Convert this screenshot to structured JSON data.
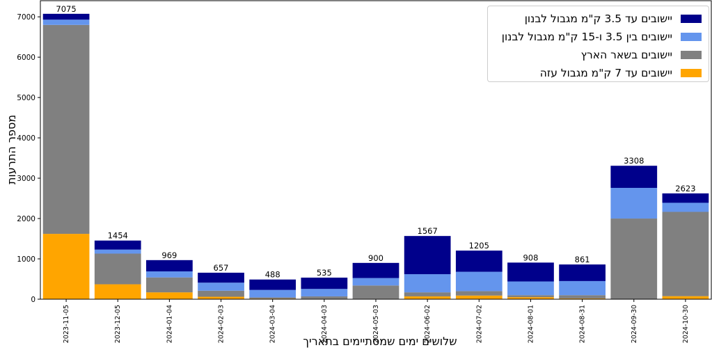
{
  "chart_data": {
    "type": "bar",
    "stacked": true,
    "title": "",
    "xlabel": "שלושים ימים שמסתיימים בתאריך",
    "ylabel": "מספר התרעות",
    "ylim": [
      0,
      7400
    ],
    "yticks": [
      0,
      1000,
      2000,
      3000,
      4000,
      5000,
      6000,
      7000
    ],
    "grid": false,
    "legend_position": "top-right",
    "categories": [
      "2023-11-05",
      "2023-12-05",
      "2024-01-04",
      "2024-02-03",
      "2024-03-04",
      "2024-04-03",
      "2024-05-03",
      "2024-06-02",
      "2024-07-02",
      "2024-08-01",
      "2024-08-31",
      "2024-09-30",
      "2024-10-30"
    ],
    "totals": [
      7075,
      1454,
      969,
      657,
      488,
      535,
      900,
      1567,
      1205,
      908,
      861,
      3308,
      2623
    ],
    "series": [
      {
        "name": "יישובים עד 7 ק\"מ מגבול עזה",
        "color": "#FFA500",
        "values": [
          1620,
          370,
          170,
          60,
          15,
          10,
          10,
          70,
          90,
          50,
          20,
          0,
          75
        ]
      },
      {
        "name": "יישובים בשאר הארץ",
        "color": "#808080",
        "values": [
          5180,
          760,
          370,
          150,
          30,
          60,
          330,
          100,
          110,
          50,
          80,
          2000,
          2090
        ]
      },
      {
        "name": "יישובים בין 3.5 ו-15 ק\"מ מגבול לבנון",
        "color": "#6495ED",
        "values": [
          130,
          100,
          150,
          200,
          185,
          185,
          185,
          450,
          480,
          340,
          350,
          760,
          225
        ]
      },
      {
        "name": "יישובים עד 3.5 ק\"מ מגבול לבנון",
        "color": "#00008B",
        "values": [
          145,
          224,
          279,
          247,
          258,
          280,
          375,
          947,
          525,
          468,
          411,
          548,
          233
        ]
      }
    ]
  },
  "legend": [
    {
      "label": "יישובים עד 3.5 ק\"מ מגבול לבנון",
      "color": "#00008B"
    },
    {
      "label": "יישובים בין 3.5 ו-15 ק\"מ מגבול לבנון",
      "color": "#6495ED"
    },
    {
      "label": "יישובים בשאר הארץ",
      "color": "#808080"
    },
    {
      "label": "יישובים עד 7 ק\"מ מגבול עזה",
      "color": "#FFA500"
    }
  ]
}
